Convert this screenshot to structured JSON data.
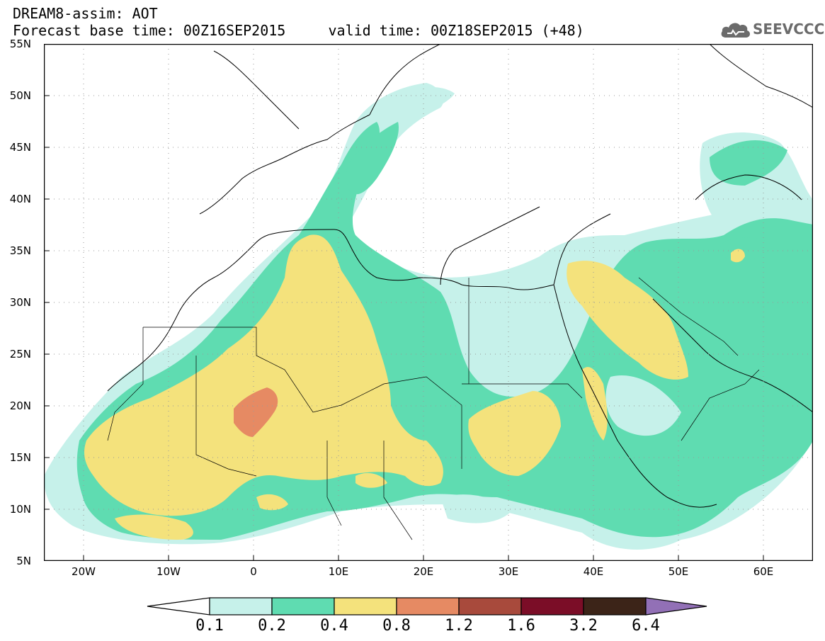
{
  "header": {
    "line1": "DREAM8-assim: AOT",
    "line2": "Forecast base time: 00Z16SEP2015     valid time: 00Z18SEP2015 (+48)"
  },
  "brand": {
    "name": "SEEVCCC",
    "icon": "cloud-icon"
  },
  "map": {
    "lat_labels": [
      "55N",
      "50N",
      "45N",
      "40N",
      "35N",
      "30N",
      "25N",
      "20N",
      "15N",
      "10N",
      "5N"
    ],
    "lon_labels": [
      "20W",
      "10W",
      "0",
      "10E",
      "20E",
      "30E",
      "40E",
      "50E",
      "60E"
    ]
  },
  "colorbar": {
    "labels": [
      "0.1",
      "0.2",
      "0.4",
      "0.8",
      "1.2",
      "1.6",
      "3.2",
      "6.4"
    ],
    "colors": [
      "#ffffff",
      "#c6f1ea",
      "#5fdcb1",
      "#f4e27c",
      "#e68a63",
      "#a84a3c",
      "#7b0d27",
      "#3c2418",
      "#9270b6"
    ]
  },
  "colors": {
    "land": "#ffffff",
    "aot_01_02": "#c6f1ea",
    "aot_02_04": "#5fdcb1",
    "aot_04_08": "#f4e27c",
    "aot_08_12": "#e68a63"
  }
}
